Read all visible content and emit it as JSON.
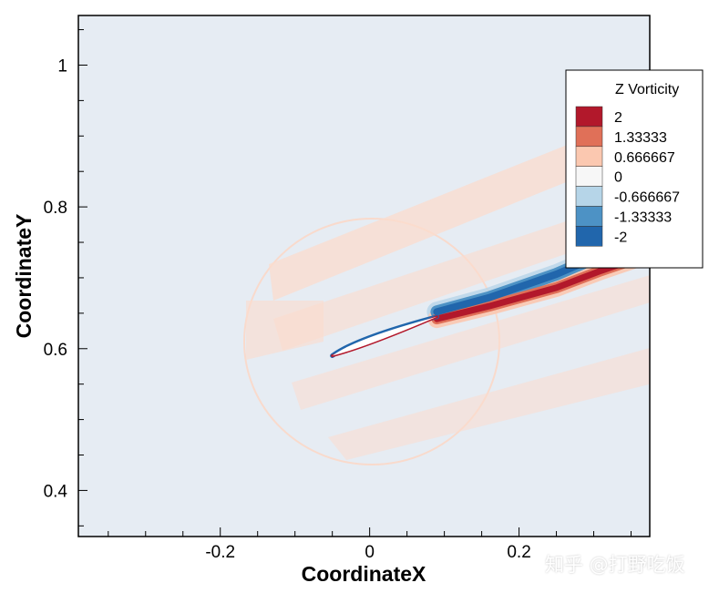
{
  "chart_data": {
    "type": "heatmap",
    "title": "",
    "xlabel": "CoordinateX",
    "ylabel": "CoordinateY",
    "xlim": [
      -0.39,
      0.375
    ],
    "ylim": [
      0.335,
      1.07
    ],
    "x_ticks": [
      -0.2,
      0,
      0.2
    ],
    "x_tick_labels": [
      "-0.2",
      "0",
      "0.2"
    ],
    "y_ticks": [
      0.4,
      0.6,
      0.8,
      1.0
    ],
    "y_tick_labels": [
      "0.4",
      "0.6",
      "0.8",
      "1"
    ],
    "legend": {
      "title": "Z Vorticity",
      "placement": "right",
      "levels": [
        {
          "label": "2",
          "color": "#b2182b"
        },
        {
          "label": "1.33333",
          "color": "#e07058"
        },
        {
          "label": "0.666667",
          "color": "#fbc8b0"
        },
        {
          "label": "0",
          "color": "#f7f7f7"
        },
        {
          "label": "-0.666667",
          "color": "#b6d5e8"
        },
        {
          "label": "-1.33333",
          "color": "#4d92c5"
        },
        {
          "label": "-2",
          "color": "#2166ac"
        }
      ]
    },
    "background_color": "#e6ecf3",
    "airfoil": {
      "leading_edge": [
        -0.05,
        0.59
      ],
      "trailing_edge": [
        0.09,
        0.645
      ]
    },
    "wake_upper": [
      [
        0.09,
        0.652
      ],
      [
        0.16,
        0.672
      ],
      [
        0.25,
        0.705
      ],
      [
        0.31,
        0.732
      ],
      [
        0.36,
        0.752
      ]
    ],
    "wake_lower": [
      [
        0.09,
        0.642
      ],
      [
        0.16,
        0.66
      ],
      [
        0.25,
        0.686
      ],
      [
        0.31,
        0.71
      ],
      [
        0.36,
        0.728
      ]
    ]
  },
  "watermark": "知乎 @打野吃饭"
}
